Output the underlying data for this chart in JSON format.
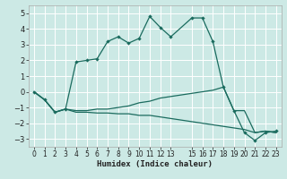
{
  "xlabel": "Humidex (Indice chaleur)",
  "bg_color": "#cce9e5",
  "grid_color": "#ffffff",
  "line_color": "#1a6b5e",
  "xlim": [
    -0.5,
    23.5
  ],
  "ylim": [
    -3.5,
    5.5
  ],
  "yticks": [
    -3,
    -2,
    -1,
    0,
    1,
    2,
    3,
    4,
    5
  ],
  "xticks": [
    0,
    1,
    2,
    3,
    4,
    5,
    6,
    7,
    8,
    9,
    10,
    11,
    12,
    13,
    15,
    16,
    17,
    18,
    19,
    20,
    21,
    22,
    23
  ],
  "curve1_x": [
    0,
    1,
    2,
    3,
    4,
    5,
    6,
    7,
    8,
    9,
    10,
    11,
    12,
    13,
    15,
    16,
    17,
    18,
    19,
    20,
    21,
    22,
    23
  ],
  "curve1_y": [
    0.0,
    -0.5,
    -1.3,
    -1.1,
    1.9,
    2.0,
    2.1,
    3.2,
    3.5,
    3.1,
    3.4,
    4.8,
    4.1,
    3.5,
    4.7,
    4.7,
    3.2,
    0.3,
    -1.2,
    -2.6,
    -3.1,
    -2.6,
    -2.5
  ],
  "curve2_x": [
    0,
    1,
    2,
    3,
    4,
    5,
    6,
    7,
    8,
    9,
    10,
    11,
    12,
    13,
    15,
    16,
    17,
    18,
    19,
    20,
    21,
    22,
    23
  ],
  "curve2_y": [
    0.0,
    -0.5,
    -1.3,
    -1.1,
    -1.3,
    -1.3,
    -1.35,
    -1.35,
    -1.4,
    -1.4,
    -1.5,
    -1.5,
    -1.6,
    -1.7,
    -1.9,
    -2.0,
    -2.1,
    -2.2,
    -2.3,
    -2.4,
    -2.6,
    -2.5,
    -2.6
  ],
  "curve3_x": [
    0,
    1,
    2,
    3,
    4,
    5,
    6,
    7,
    8,
    9,
    10,
    11,
    12,
    13,
    15,
    16,
    17,
    18,
    19,
    20,
    21,
    22,
    23
  ],
  "curve3_y": [
    0.0,
    -0.5,
    -1.3,
    -1.1,
    -1.2,
    -1.2,
    -1.1,
    -1.1,
    -1.0,
    -0.9,
    -0.7,
    -0.6,
    -0.4,
    -0.3,
    -0.1,
    0.0,
    0.1,
    0.3,
    -1.2,
    -1.2,
    -2.6,
    -2.5,
    -2.6
  ]
}
